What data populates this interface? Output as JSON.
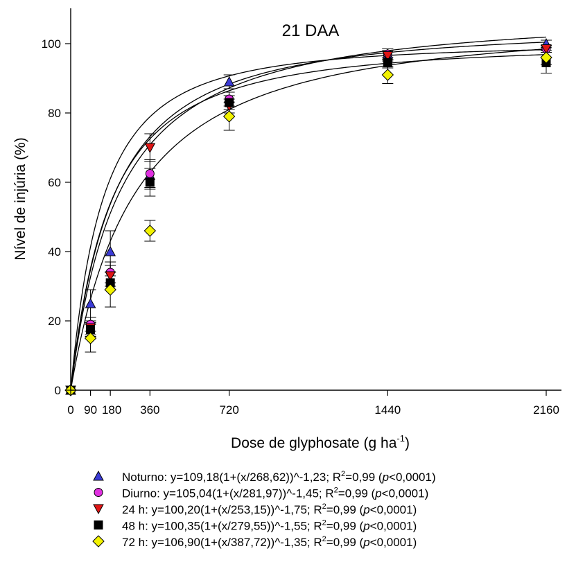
{
  "chart_data": {
    "type": "scatter",
    "title": "21 DAA",
    "xlabel_main": "Dose de glyphosate (g ha",
    "xlabel_sup": "-1",
    "xlabel_end": ")",
    "ylabel": "Nível de injúria (%)",
    "xlim": [
      0,
      2250
    ],
    "ylim": [
      0,
      110
    ],
    "xticks": [
      "0",
      "90",
      "180",
      "360",
      "720",
      "1440",
      "2160"
    ],
    "xtick_values": [
      0,
      90,
      180,
      360,
      720,
      1440,
      2160
    ],
    "yticks": [
      0,
      20,
      40,
      60,
      80,
      100
    ],
    "x": [
      0,
      90,
      180,
      360,
      720,
      1440,
      2160
    ],
    "series": [
      {
        "legend_label": "Noturno: y=109,18(1+(x/268,62))^-1,23; R",
        "legend_sup": "2",
        "legend_rest": "=0,99 (",
        "legend_p": "p",
        "legend_end": "<0,0001)",
        "marker": "triangle-up",
        "color": "#3b3bd6",
        "values": [
          0,
          25,
          40,
          62,
          89,
          97,
          100
        ],
        "errors": [
          0,
          4,
          6,
          4,
          2,
          1.5,
          1
        ],
        "model": {
          "a": 109.18,
          "b": 268.62,
          "c": 1.23
        }
      },
      {
        "legend_label": "Diurno: y=105,04(1+(x/281,97))^-1,45; R",
        "legend_sup": "2",
        "legend_rest": "=0,99 (",
        "legend_p": "p",
        "legend_end": "<0,0001)",
        "marker": "circle",
        "color": "#e030e0",
        "values": [
          0,
          19,
          34,
          62.5,
          84,
          97,
          98.5
        ],
        "errors": [
          0,
          2,
          3,
          4,
          2,
          1.5,
          1
        ],
        "model": {
          "a": 105.04,
          "b": 281.97,
          "c": 1.45
        }
      },
      {
        "legend_label": "24 h: y=100,20(1+(x/253,15))^-1,75; R",
        "legend_sup": "2",
        "legend_rest": "=0,99 (",
        "legend_p": "p",
        "legend_end": "<0,0001)",
        "marker": "triangle-down",
        "color": "#e01515",
        "values": [
          0,
          18,
          33,
          70,
          82,
          96.5,
          98.5
        ],
        "errors": [
          0,
          2,
          3,
          4,
          2,
          1.5,
          1
        ],
        "model": {
          "a": 100.2,
          "b": 253.15,
          "c": 1.75
        }
      },
      {
        "legend_label": "48 h: y=100,35(1+(x/279,55))^-1,55; R",
        "legend_sup": "2",
        "legend_rest": "=0,99 (",
        "legend_p": "p",
        "legend_end": "<0,0001)",
        "marker": "square",
        "color": "#000000",
        "values": [
          0,
          17.5,
          31,
          60,
          83,
          94.5,
          94.5
        ],
        "errors": [
          0,
          2,
          2,
          4,
          2,
          1.5,
          3
        ],
        "model": {
          "a": 100.35,
          "b": 279.55,
          "c": 1.55
        }
      },
      {
        "legend_label": "72 h: y=106,90(1+(x/387,72))^-1,35; R",
        "legend_sup": "2",
        "legend_rest": "=0,99 (",
        "legend_p": "p",
        "legend_end": "<0,0001)",
        "marker": "diamond",
        "color": "#f2f200",
        "values": [
          0,
          15,
          29,
          46,
          79,
          91,
          96
        ],
        "errors": [
          0,
          4,
          5,
          3,
          4,
          2.5,
          2
        ],
        "model": {
          "a": 106.9,
          "b": 387.72,
          "c": 1.35
        }
      }
    ]
  }
}
